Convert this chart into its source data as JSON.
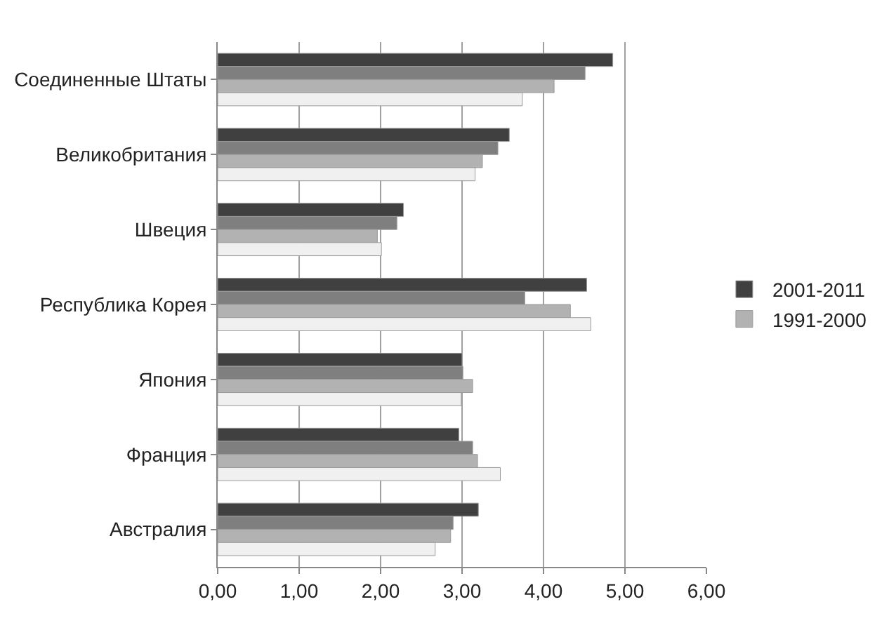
{
  "chart_data": {
    "type": "bar",
    "orientation": "horizontal",
    "categories": [
      "Соединенные Штаты",
      "Великобритания",
      "Швеция",
      "Республика Корея",
      "Япония",
      "Франция",
      "Австралия"
    ],
    "series": [
      {
        "name": "2001-2011",
        "color": "#404040",
        "values": [
          4.85,
          3.58,
          2.28,
          4.53,
          3.0,
          2.96,
          3.2
        ]
      },
      {
        "color": "#7f7f7f",
        "values": [
          4.51,
          3.44,
          2.2,
          3.77,
          3.01,
          3.13,
          2.89
        ]
      },
      {
        "name": "1991-2000",
        "color": "#b2b2b2",
        "values": [
          4.13,
          3.25,
          1.96,
          4.33,
          3.13,
          3.19,
          2.86
        ]
      },
      {
        "color": "#f0f0f0",
        "values": [
          3.74,
          3.16,
          2.01,
          4.58,
          2.99,
          3.47,
          2.67
        ]
      }
    ],
    "xlim": [
      0,
      6
    ],
    "xticks": [
      {
        "value": 0,
        "label": "0,00"
      },
      {
        "value": 1,
        "label": "1,00"
      },
      {
        "value": 2,
        "label": "2,00"
      },
      {
        "value": 3,
        "label": "3,00"
      },
      {
        "value": 4,
        "label": "4,00"
      },
      {
        "value": 5,
        "label": "5,00"
      },
      {
        "value": 6,
        "label": "6,00"
      }
    ],
    "grid": "x",
    "legend": "right"
  }
}
